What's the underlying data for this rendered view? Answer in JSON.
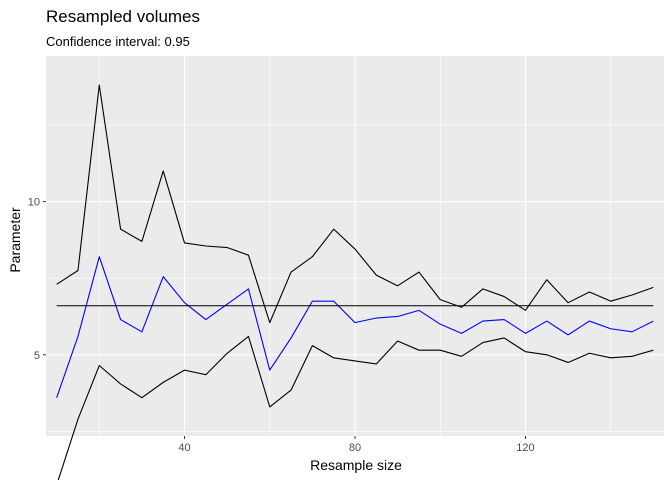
{
  "chart_data": {
    "type": "line",
    "title": "Resampled volumes",
    "subtitle": "Confidence interval: 0.95",
    "xlabel": "Resample size",
    "ylabel": "Parameter",
    "xlim": [
      7.5,
      152.5
    ],
    "ylim": [
      2.35,
      14.75
    ],
    "x_ticks": [
      40,
      80,
      120
    ],
    "y_ticks": [
      5,
      10
    ],
    "x": [
      10,
      15,
      20,
      25,
      30,
      35,
      40,
      45,
      50,
      55,
      60,
      65,
      70,
      75,
      80,
      85,
      90,
      95,
      100,
      105,
      110,
      115,
      120,
      125,
      130,
      135,
      140,
      145,
      150
    ],
    "series": [
      {
        "color": "#000000",
        "values": [
          7.3,
          7.75,
          13.8,
          9.1,
          8.7,
          11.0,
          8.65,
          8.55,
          8.5,
          8.25,
          6.05,
          7.7,
          8.2,
          9.1,
          8.45,
          7.6,
          7.25,
          7.7,
          6.8,
          6.55,
          7.15,
          6.9,
          6.45,
          7.45,
          6.7,
          7.05,
          6.75,
          6.95,
          7.2
        ]
      },
      {
        "color": "#0000ff",
        "values": [
          3.6,
          5.6,
          8.2,
          6.15,
          5.75,
          7.55,
          6.7,
          6.15,
          6.65,
          7.15,
          4.5,
          5.55,
          6.75,
          6.75,
          6.05,
          6.2,
          6.25,
          6.45,
          6.0,
          5.7,
          6.1,
          6.15,
          5.7,
          6.1,
          5.65,
          6.1,
          5.85,
          5.75,
          6.1
        ]
      },
      {
        "color": "#000000",
        "values": [
          0.75,
          2.9,
          4.65,
          4.05,
          3.6,
          4.1,
          4.5,
          4.35,
          5.05,
          5.6,
          3.3,
          3.85,
          5.3,
          4.9,
          4.8,
          4.7,
          5.45,
          5.15,
          5.15,
          4.95,
          5.4,
          5.55,
          5.1,
          5.0,
          4.75,
          5.05,
          4.9,
          4.95,
          5.15
        ]
      },
      {
        "color": "#000000",
        "values": [
          6.6,
          6.6,
          6.6,
          6.6,
          6.6,
          6.6,
          6.6,
          6.6,
          6.6,
          6.6,
          6.6,
          6.6,
          6.6,
          6.6,
          6.6,
          6.6,
          6.6,
          6.6,
          6.6,
          6.6,
          6.6,
          6.6,
          6.6,
          6.6,
          6.6,
          6.6,
          6.6,
          6.6,
          6.6
        ]
      }
    ],
    "grid": true,
    "background": "#ebebeb",
    "grid_major_color": "#ffffff"
  }
}
